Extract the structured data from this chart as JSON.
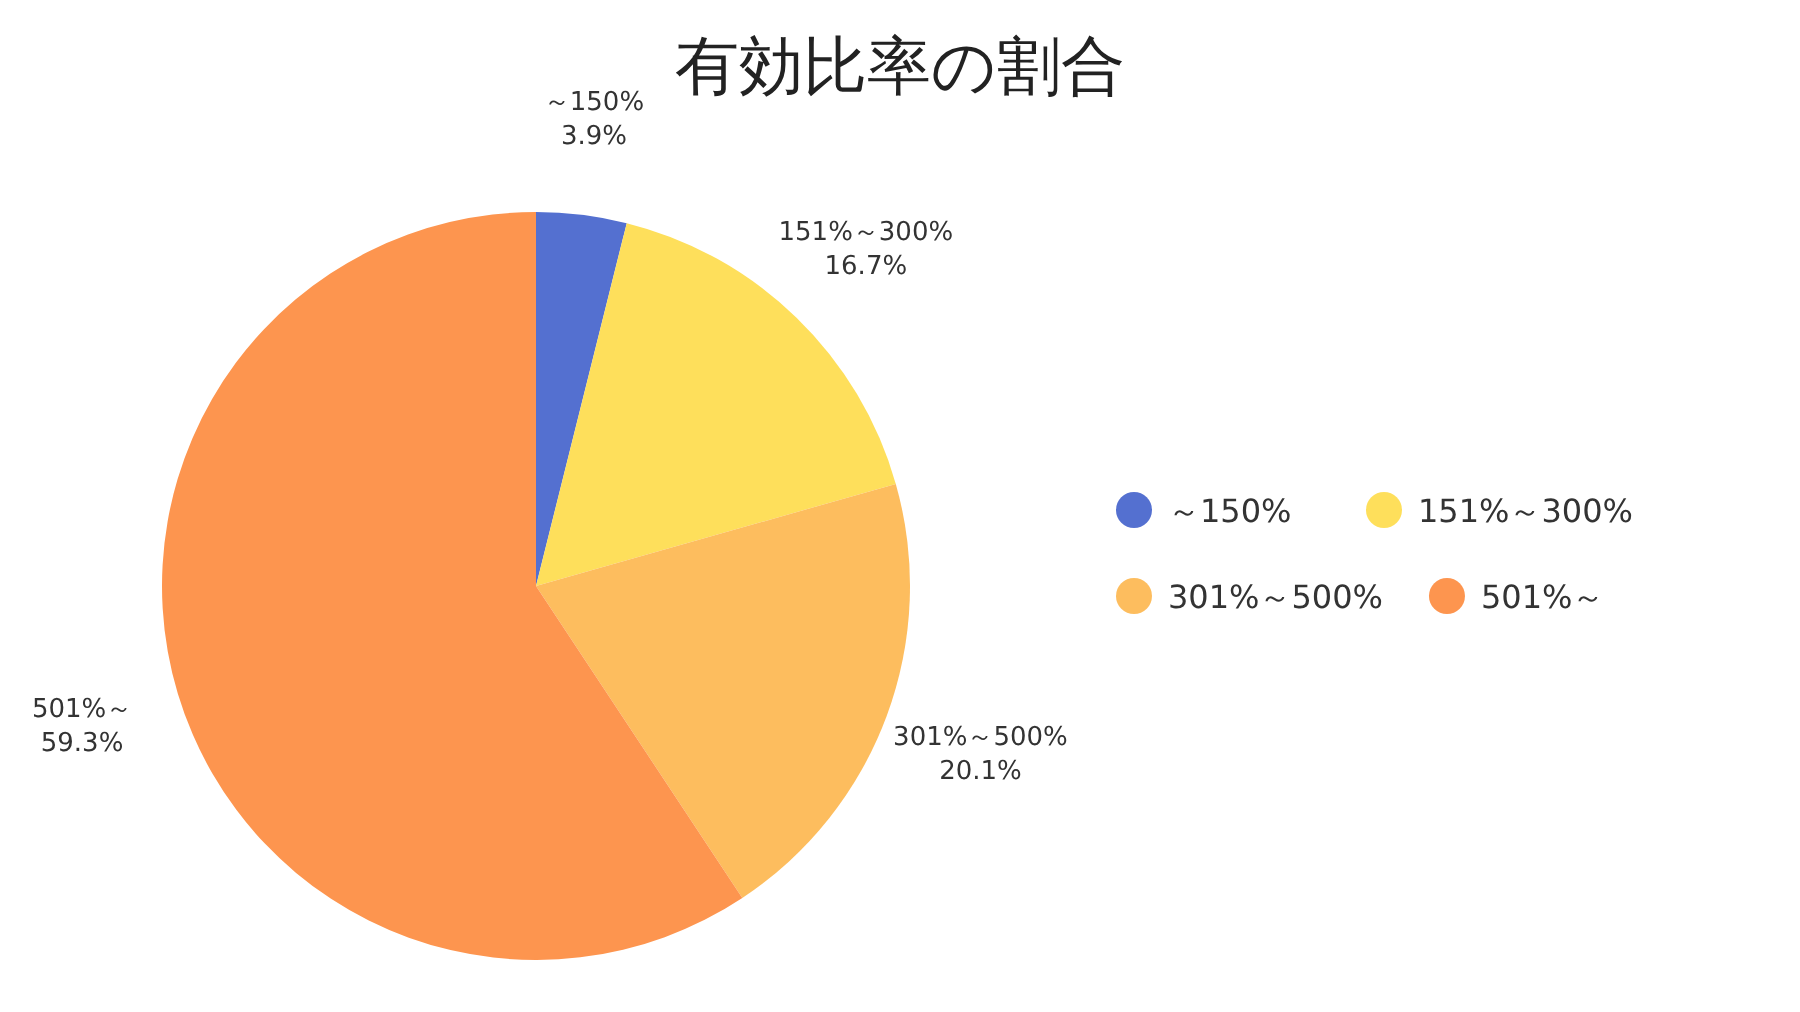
{
  "chart_data": {
    "type": "pie",
    "title": "有効比率の割合",
    "categories": [
      "～150%",
      "151%～300%",
      "301%～500%",
      "501%～"
    ],
    "values": [
      3.9,
      16.7,
      20.1,
      59.3
    ],
    "value_labels": [
      "3.9%",
      "16.7%",
      "20.1%",
      "59.3%"
    ],
    "colors": [
      "#5470d0",
      "#fedf5b",
      "#fdbd5e",
      "#fd954f"
    ],
    "legend": "right"
  }
}
